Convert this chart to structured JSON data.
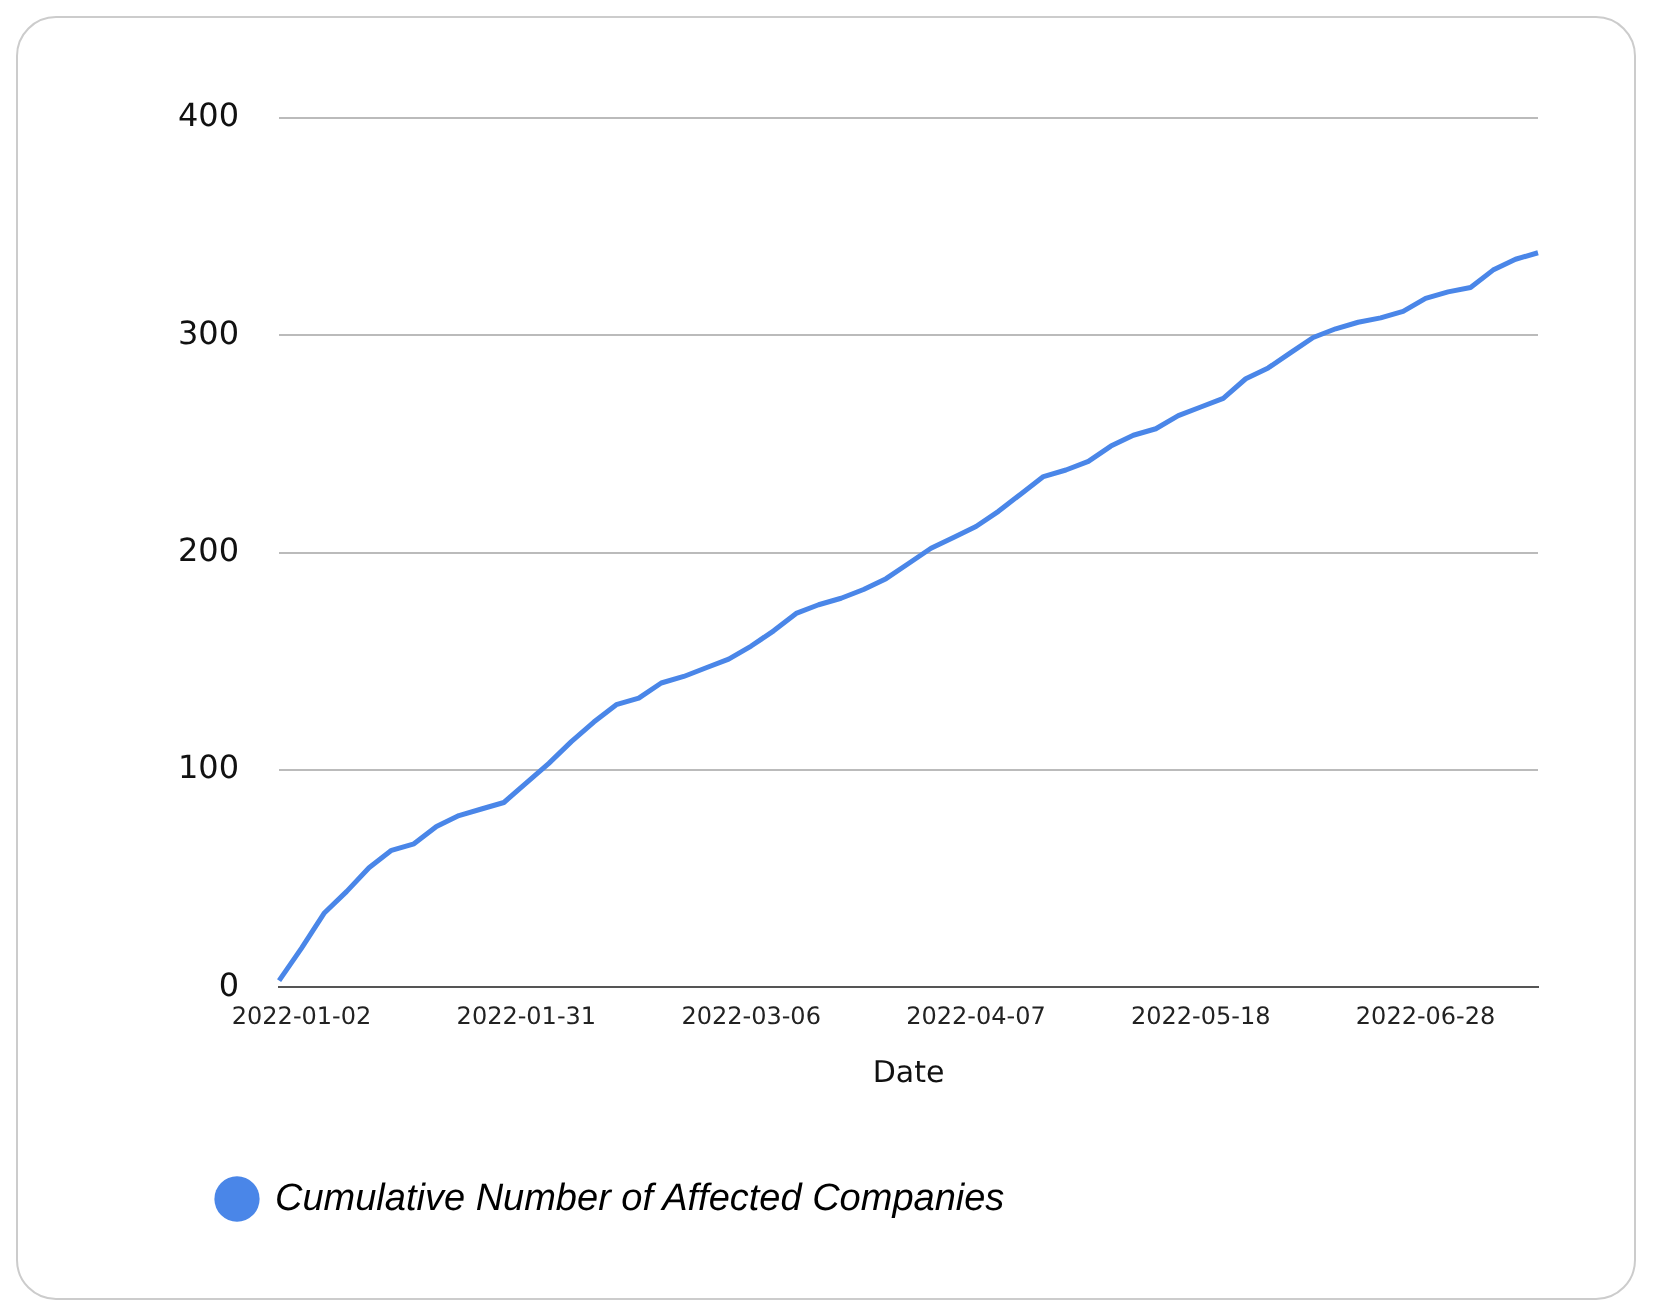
{
  "chart_data": {
    "type": "line",
    "xlabel": "Date",
    "categories": [
      null,
      "2022-01-02",
      null,
      null,
      null,
      null,
      null,
      null,
      null,
      null,
      null,
      "2022-01-31",
      null,
      null,
      null,
      null,
      null,
      null,
      null,
      null,
      null,
      "2022-03-06",
      null,
      null,
      null,
      null,
      null,
      null,
      null,
      null,
      null,
      "2022-04-07",
      null,
      null,
      null,
      null,
      null,
      null,
      null,
      null,
      null,
      "2022-05-18",
      null,
      null,
      null,
      null,
      null,
      null,
      null,
      null,
      null,
      "2022-06-28",
      null,
      null,
      null,
      null,
      null
    ],
    "series": [
      {
        "name": "Cumulative Number of Affected Companies",
        "color": "#4a86e8",
        "values": [
          3,
          18,
          34,
          44,
          55,
          63,
          66,
          74,
          79,
          82,
          85,
          94,
          103,
          113,
          122,
          130,
          133,
          140,
          143,
          147,
          151,
          157,
          164,
          172,
          176,
          179,
          183,
          188,
          195,
          202,
          207,
          212,
          219,
          227,
          235,
          238,
          242,
          249,
          254,
          257,
          263,
          267,
          271,
          280,
          285,
          292,
          299,
          303,
          306,
          308,
          311,
          317,
          320,
          322,
          330,
          335,
          338
        ]
      }
    ],
    "ylim": [
      0,
      400
    ],
    "yticks": [
      0,
      100,
      200,
      300,
      400
    ],
    "grid": "y",
    "legend": "bottom left",
    "marker": "none"
  }
}
